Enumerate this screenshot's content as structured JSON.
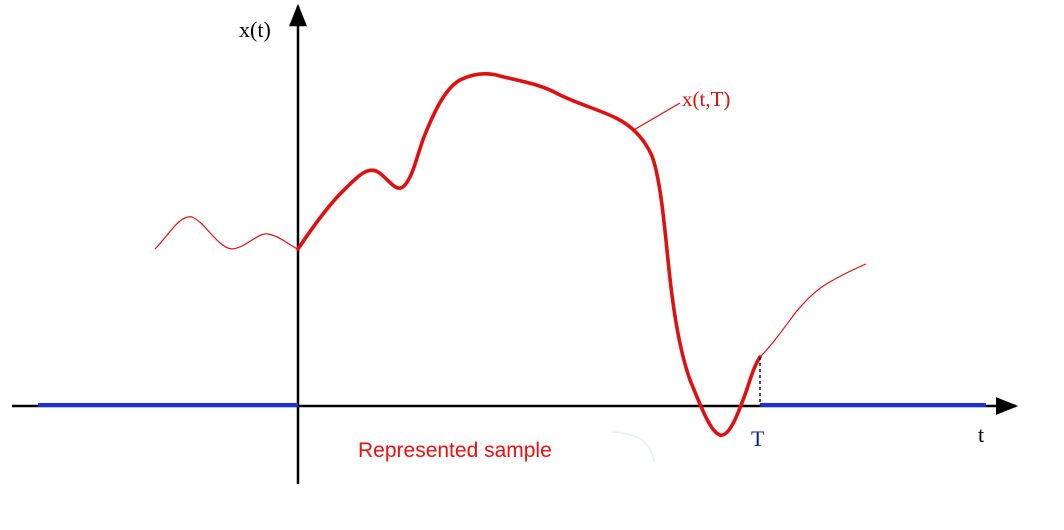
{
  "diagram": {
    "y_axis_label": "x(t)",
    "x_axis_label": "t",
    "curve_label": "x(t,T)",
    "t_marker_label": "T",
    "caption": "Represented sample"
  },
  "colors": {
    "axis": "#000000",
    "curve": "#dd1111",
    "zero_segment": "#1f2fd6",
    "t_marker": "#1a1a8c",
    "caption": "#e81010"
  }
}
